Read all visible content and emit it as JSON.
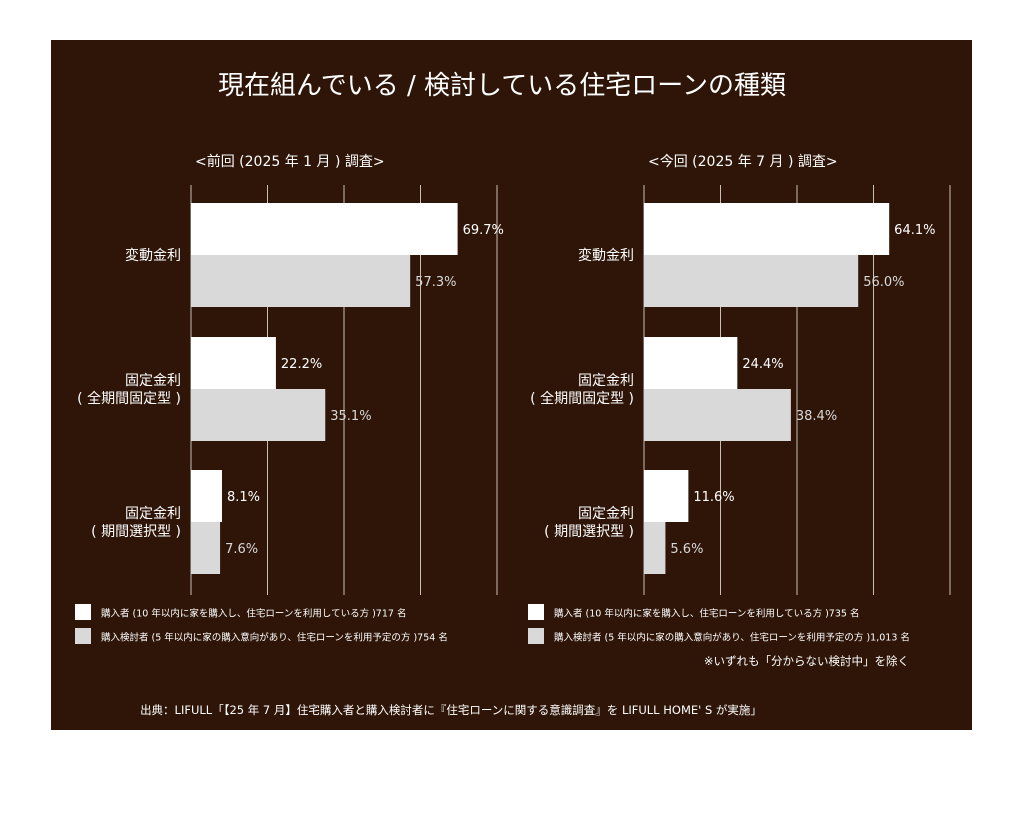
{
  "title": "現在組んでいる / 検討している住宅ローンの種類",
  "colors": {
    "background": "#2e1508",
    "series_purchasers": "#ffffff",
    "series_considerers": "#d9d9d9",
    "gridline": "#c9bfb5"
  },
  "chart_data": [
    {
      "type": "bar",
      "orientation": "horizontal",
      "title": "<前回 (2025 年 1 月 ) 調査>",
      "categories": [
        "変動金利",
        "固定金利\n( 全期間固定型 )",
        "固定金利\n( 期間選択型 )"
      ],
      "xlim": [
        0,
        80
      ],
      "grid": true,
      "series": [
        {
          "name": "購入者 (10 年以内に家を購入し、住宅ローンを利用している方 )717 名",
          "values": [
            69.7,
            22.2,
            8.1
          ],
          "labels": [
            "69.7%",
            "22.2%",
            "8.1%"
          ]
        },
        {
          "name": "購入検討者 (5 年以内に家の購入意向があり、住宅ローンを利用予定の方 )754 名",
          "values": [
            57.3,
            35.1,
            7.6
          ],
          "labels": [
            "57.3%",
            "35.1%",
            "7.6%"
          ]
        }
      ]
    },
    {
      "type": "bar",
      "orientation": "horizontal",
      "title": "<今回 (2025 年 7 月 ) 調査>",
      "categories": [
        "変動金利",
        "固定金利\n( 全期間固定型 )",
        "固定金利\n( 期間選択型 )"
      ],
      "xlim": [
        0,
        80
      ],
      "grid": true,
      "series": [
        {
          "name": "購入者 (10 年以内に家を購入し、住宅ローンを利用している方 )735 名",
          "values": [
            64.1,
            24.4,
            11.6
          ],
          "labels": [
            "64.1%",
            "24.4%",
            "11.6%"
          ]
        },
        {
          "name": "購入検討者 (5 年以内に家の購入意向があり、住宅ローンを利用予定の方 )1,013 名",
          "values": [
            56.0,
            38.4,
            5.6
          ],
          "labels": [
            "56.0%",
            "38.4%",
            "5.6%"
          ]
        }
      ]
    }
  ],
  "note": "※いずれも「分からない検討中」を除く",
  "source": "出典：LIFULL「【25 年 7 月】住宅購入者と購入検討者に『住宅ローンに関する意識調査』を LIFULL HOME' S が実施」"
}
